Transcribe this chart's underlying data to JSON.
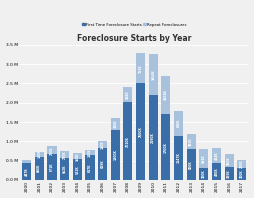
{
  "title": "Foreclosure Starts by Year",
  "legend_labels": [
    "First Time Foreclosure Starts",
    "Repeat Foreclosures"
  ],
  "years": [
    "2000",
    "2001",
    "2002",
    "2003",
    "2004",
    "2005",
    "2006",
    "2007",
    "2008",
    "2009",
    "2010",
    "2011",
    "2012",
    "2013",
    "2014",
    "2015",
    "2016",
    "2017"
  ],
  "first_time": [
    447,
    606,
    671,
    562,
    531,
    647,
    819,
    1300,
    2010,
    2500,
    2190,
    1700,
    1147,
    800,
    300,
    430,
    335,
    300
  ],
  "repeat": [
    80,
    130,
    200,
    200,
    160,
    130,
    180,
    310,
    408,
    783,
    1064,
    1004,
    646,
    383,
    504,
    404,
    350,
    220
  ],
  "colors": {
    "first_time": "#3a6ea8",
    "repeat": "#a8c2de",
    "background": "#f0f0f0",
    "grid": "#ffffff"
  },
  "ylim_max": 3500,
  "ylabel_ticks": [
    0,
    500,
    1000,
    1500,
    2000,
    2500,
    3000,
    3500
  ],
  "ylabel_labels": [
    "0.0 M",
    "0.5 M",
    "1.0 M",
    "1.5 M",
    "2.0 M",
    "2.5 M",
    "3.0 M",
    "3.5 M"
  ]
}
